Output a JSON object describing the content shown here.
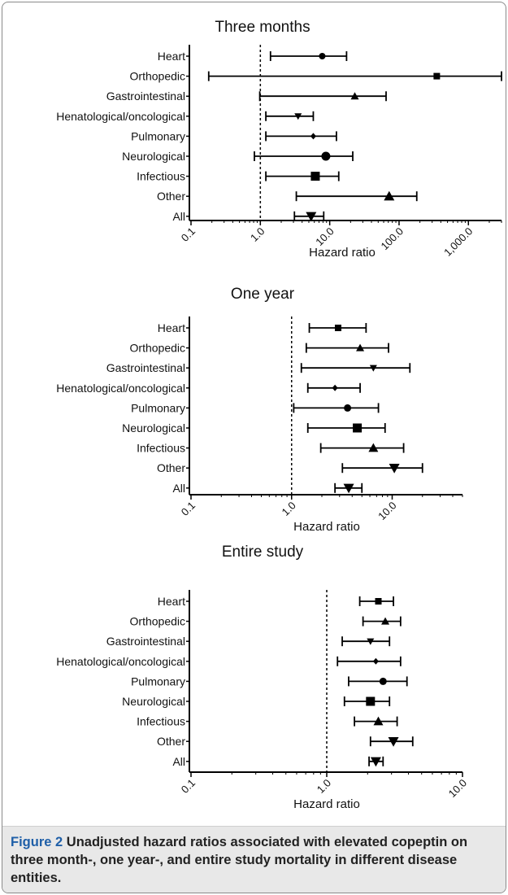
{
  "chart_data": [
    {
      "type": "forest",
      "title": "Three months",
      "xlabel": "Hazard ratio",
      "xscale": "log",
      "xlim": [
        0.1,
        3000
      ],
      "ticks": [
        "0.1",
        "1.0",
        "10.0",
        "100.0",
        "1,000.0"
      ],
      "tick_values": [
        0.1,
        1,
        10,
        100,
        1000
      ],
      "reference_line": 1.0,
      "categories": [
        "Heart",
        "Orthopedic",
        "Gastrointestinal",
        "Henatological/oncological",
        "Pulmonary",
        "Neurological",
        "Infectious",
        "Other",
        "All"
      ],
      "estimates": [
        7.8,
        350,
        23,
        3.5,
        5.8,
        8.8,
        6.2,
        72,
        5.4
      ],
      "ci_low": [
        1.4,
        0.18,
        0.98,
        1.2,
        1.2,
        0.82,
        1.2,
        3.3,
        3.1
      ],
      "ci_high": [
        17.5,
        3000,
        65,
        5.8,
        12.5,
        21.5,
        13.5,
        180,
        8.2
      ],
      "markers": [
        "circle",
        "square",
        "triangle-up",
        "triangle-down",
        "diamond",
        "circle",
        "square",
        "triangle-up",
        "triangle-down"
      ]
    },
    {
      "type": "forest",
      "title": "One year",
      "xlabel": "Hazard ratio",
      "xscale": "log",
      "xlim": [
        0.1,
        50
      ],
      "ticks": [
        "0.1",
        "1.0",
        "10.0"
      ],
      "tick_values": [
        0.1,
        1,
        10
      ],
      "reference_line": 1.0,
      "categories": [
        "Heart",
        "Orthopedic",
        "Gastrointestinal",
        "Henatological/oncological",
        "Pulmonary",
        "Neurological",
        "Infectious",
        "Other",
        "All"
      ],
      "estimates": [
        2.9,
        4.8,
        6.5,
        2.7,
        3.6,
        4.5,
        6.5,
        10.5,
        3.7
      ],
      "ci_low": [
        1.5,
        1.4,
        1.25,
        1.45,
        1.05,
        1.45,
        1.95,
        3.2,
        2.7
      ],
      "ci_high": [
        5.5,
        9.2,
        15,
        4.8,
        7.3,
        8.5,
        13,
        20,
        5
      ],
      "markers": [
        "square",
        "triangle-up",
        "triangle-down",
        "diamond",
        "circle",
        "square",
        "triangle-up",
        "triangle-down",
        "triangle-down"
      ]
    },
    {
      "type": "forest",
      "title": "Entire study",
      "xlabel": "Hazard ratio",
      "xscale": "log",
      "xlim": [
        0.1,
        10
      ],
      "ticks": [
        "0.1",
        "1.0",
        "10.0"
      ],
      "tick_values": [
        0.1,
        1,
        10
      ],
      "reference_line": 1.0,
      "categories": [
        "Heart",
        "Orthopedic",
        "Gastrointestinal",
        "Henatological/oncological",
        "Pulmonary",
        "Neurological",
        "Infectious",
        "Other",
        "All"
      ],
      "estimates": [
        2.4,
        2.7,
        2.1,
        2.3,
        2.6,
        2.1,
        2.4,
        3.1,
        2.3
      ],
      "ci_low": [
        1.75,
        1.85,
        1.3,
        1.2,
        1.45,
        1.35,
        1.6,
        2.1,
        2.05
      ],
      "ci_high": [
        3.1,
        3.5,
        2.9,
        3.5,
        3.9,
        2.9,
        3.3,
        4.3,
        2.6
      ],
      "markers": [
        "square",
        "triangle-up",
        "triangle-down",
        "diamond",
        "circle",
        "square",
        "triangle-up",
        "triangle-down",
        "triangle-down"
      ]
    }
  ],
  "caption": {
    "label": "Figure 2",
    "text": "Unadjusted hazard ratios associated with elevated copeptin on three month-, one year-, and entire study mortality in different disease entities."
  }
}
